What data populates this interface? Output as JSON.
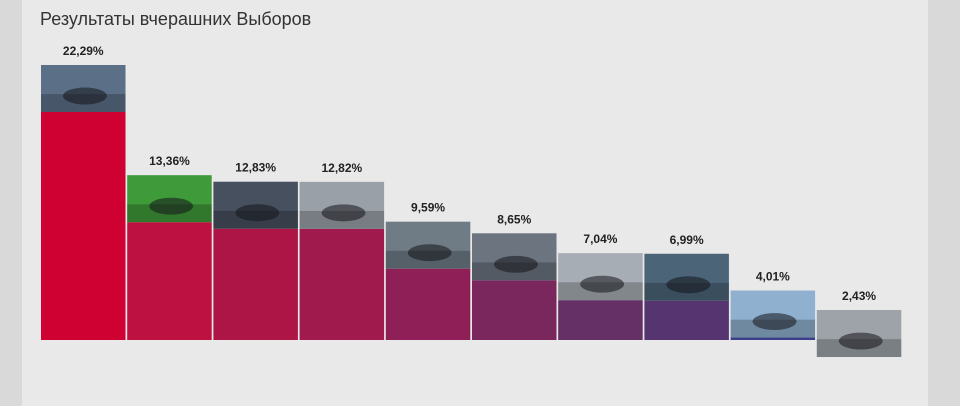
{
  "chart_data": {
    "type": "bar",
    "title": "Результаты вчерашних Выборов",
    "categories": [
      "",
      "",
      "",
      "",
      "",
      "",
      "",
      "",
      "",
      ""
    ],
    "values": [
      22.29,
      13.36,
      12.83,
      12.82,
      9.59,
      8.65,
      7.04,
      6.99,
      4.01,
      2.43
    ],
    "value_labels": [
      "22,29%",
      "13,36%",
      "12,83%",
      "12,82%",
      "9,59%",
      "8,65%",
      "7,04%",
      "6,99%",
      "4,01%",
      "2,43%"
    ],
    "colors": [
      "#cf0032",
      "#bd1241",
      "#ad1546",
      "#a11a4e",
      "#8f2057",
      "#7a275e",
      "#643065",
      "#56346f",
      "#3b3f87",
      "#204c98"
    ],
    "ylim": [
      0,
      22.29
    ],
    "grid": false,
    "legend": "none"
  }
}
